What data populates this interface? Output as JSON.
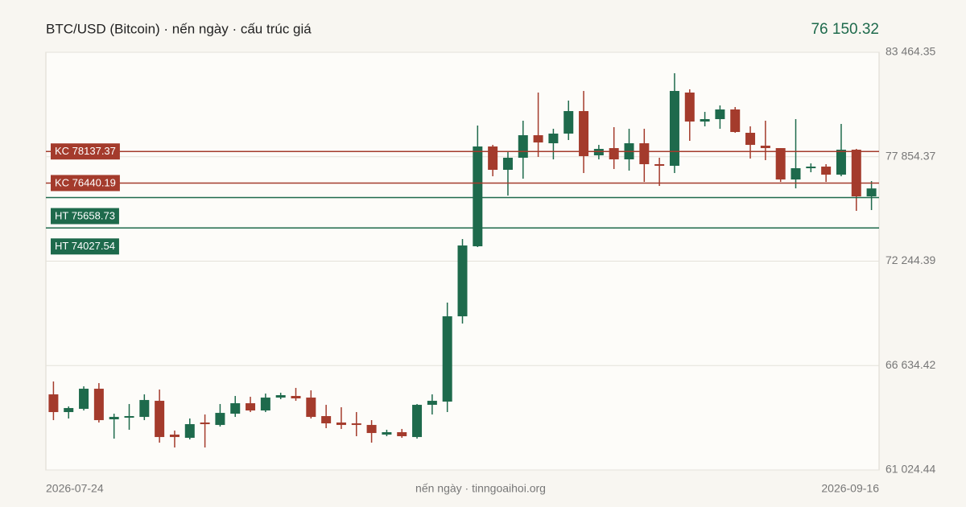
{
  "chart_data": {
    "type": "candlestick",
    "title": "BTC/USD (Bitcoin) · nến ngày · cấu trúc giá",
    "price": {
      "value": 76150.32,
      "label": "76 150.32"
    },
    "footer": "nến ngày · tinngoaihoi.org",
    "up_color": "#1e6a4c",
    "down_color": "#a43b2c",
    "grid": true,
    "ylim": [
      61024.44,
      83464.35
    ],
    "yticks": [
      {
        "value": 61024.44,
        "label": "61 024.44"
      },
      {
        "value": 66634.42,
        "label": "66 634.42"
      },
      {
        "value": 72244.39,
        "label": "72 244.39"
      },
      {
        "value": 77854.37,
        "label": "77 854.37"
      },
      {
        "value": 83464.35,
        "label": "83 464.35"
      }
    ],
    "levels": [
      {
        "value": 78137.37,
        "label": "KC 78137.37",
        "color": "#a43b2c"
      },
      {
        "value": 76440.19,
        "label": "KC 76440.19",
        "color": "#a43b2c"
      },
      {
        "value": 75658.73,
        "label": "HT 75658.73",
        "color": "#1e6a4c"
      },
      {
        "value": 74027.54,
        "label": "HT 74027.54",
        "color": "#1e6a4c"
      }
    ],
    "categories": [
      "2026-07-24",
      null,
      null,
      null,
      null,
      null,
      null,
      null,
      null,
      null,
      null,
      null,
      null,
      null,
      null,
      null,
      null,
      null,
      null,
      null,
      null,
      null,
      null,
      null,
      null,
      null,
      null,
      null,
      null,
      null,
      null,
      null,
      null,
      null,
      null,
      null,
      null,
      null,
      null,
      null,
      null,
      null,
      null,
      null,
      null,
      null,
      null,
      null,
      null,
      null,
      null,
      null,
      null,
      null,
      "2026-09-16"
    ],
    "open": [
      65087,
      64136,
      64309,
      65390,
      63747,
      63833,
      63876,
      64741,
      62925,
      62752,
      63574,
      63444,
      64049,
      64611,
      64222,
      64914,
      65001,
      64914,
      63920,
      63574,
      63530,
      63444,
      62925,
      63055,
      62795,
      64525,
      64698,
      69281,
      73043,
      78405,
      77151,
      77800,
      79010,
      78578,
      79097,
      80307,
      77929,
      78318,
      77713,
      78578,
      77454,
      77367,
      81302,
      79745,
      79875,
      80394,
      79140,
      78448,
      78318,
      76632,
      77237,
      77324,
      76892,
      78232,
      75724
    ],
    "high": [
      65779,
      64438,
      65519,
      65692,
      64049,
      64568,
      65087,
      65346,
      63141,
      63790,
      64006,
      64568,
      65001,
      64957,
      65130,
      65173,
      65433,
      65303,
      64525,
      64395,
      64136,
      63703,
      63184,
      63228,
      64568,
      65087,
      70016,
      73432,
      79529,
      78491,
      78102,
      79789,
      81302,
      79356,
      80870,
      81388,
      78491,
      79443,
      79356,
      79356,
      77800,
      82340,
      81475,
      80264,
      80610,
      80524,
      79486,
      79789,
      78318,
      79875,
      77497,
      77454,
      79616,
      78275,
      76546
    ],
    "low": [
      63703,
      63790,
      64222,
      63574,
      62709,
      63184,
      63703,
      62493,
      62233,
      62666,
      62233,
      63357,
      63876,
      64136,
      64136,
      64828,
      64741,
      63790,
      63271,
      63228,
      62839,
      62493,
      62839,
      62752,
      62709,
      64006,
      64136,
      68892,
      73000,
      76805,
      75767,
      76675,
      77843,
      77713,
      78751,
      76978,
      77713,
      77194,
      77108,
      76502,
      76286,
      76978,
      78708,
      79486,
      79356,
      79140,
      77756,
      77670,
      76502,
      76156,
      77021,
      76502,
      76805,
      74946,
      74989
    ],
    "close": [
      64136,
      64352,
      65390,
      63703,
      63876,
      63920,
      64784,
      62795,
      62795,
      63487,
      63487,
      64092,
      64611,
      64222,
      64914,
      65044,
      64871,
      63876,
      63530,
      63444,
      63444,
      63011,
      63055,
      62839,
      64525,
      64741,
      69281,
      73086,
      78405,
      77151,
      77800,
      79010,
      78621,
      79097,
      80307,
      77886,
      78275,
      77713,
      78578,
      77454,
      77367,
      81388,
      79745,
      79875,
      80394,
      79183,
      78491,
      78318,
      76632,
      77237,
      77324,
      76892,
      78232,
      75724,
      76150.32
    ]
  }
}
